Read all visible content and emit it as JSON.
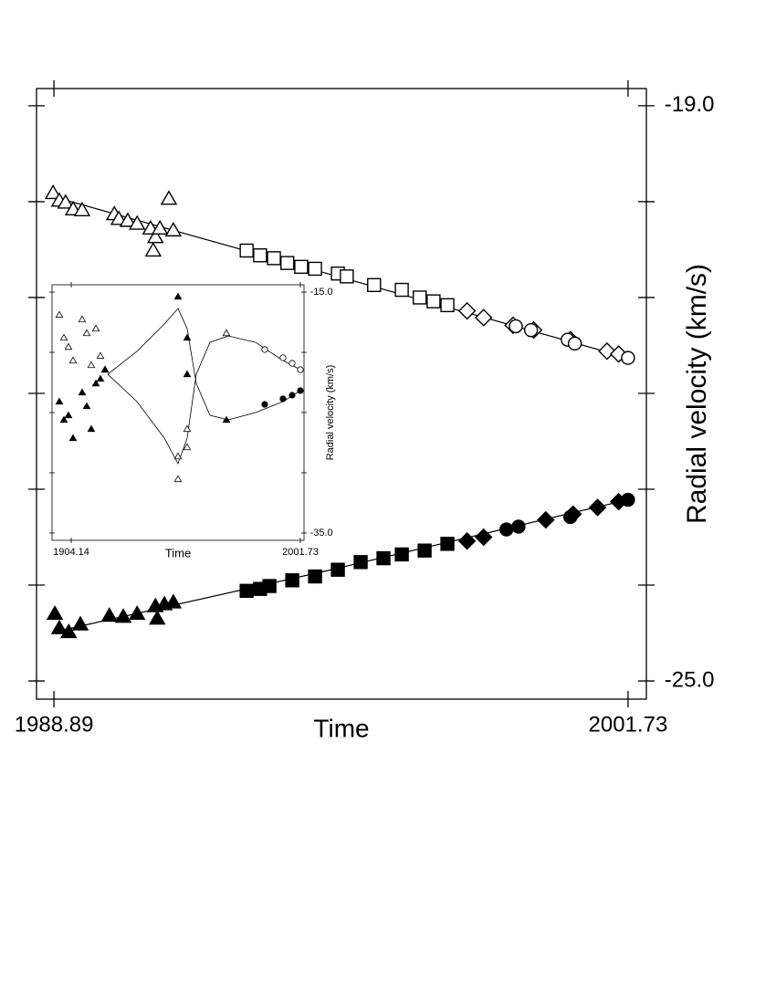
{
  "chart_data": [
    {
      "type": "scatter",
      "xlabel": "Time",
      "ylabel": "Radial velocity (km/s)",
      "yaxis_side": "right",
      "xlim": [
        1988.5,
        2002.14
      ],
      "ylim": [
        -25.19,
        -18.82
      ],
      "xticks": [
        1988.89,
        2001.73
      ],
      "yticks": [
        {
          "value": -19,
          "label": "-19.0"
        },
        {
          "value": -25,
          "label": "-25.0"
        }
      ],
      "yminor": [
        -20,
        -21,
        -22,
        -23,
        -24
      ],
      "color": "#000000",
      "series": [
        {
          "marker": "triangle",
          "filled": false,
          "x": [
            1988.87,
            1989.01,
            1989.15,
            1989.32,
            1989.52,
            1990.24,
            1990.34,
            1990.54,
            1990.75,
            1991.05,
            1991.16,
            1991.26,
            1991.46,
            1991.56,
            1991.11
          ],
          "values": [
            -19.91,
            -19.99,
            -20.01,
            -20.08,
            -20.09,
            -20.13,
            -20.18,
            -20.2,
            -20.23,
            -20.28,
            -20.37,
            -20.28,
            -19.97,
            -20.3,
            -20.51
          ]
        },
        {
          "marker": "square",
          "filled": false,
          "x": [
            1993.2,
            1993.5,
            1993.81,
            1994.11,
            1994.42,
            1994.73,
            1995.24,
            1995.44,
            1996.05,
            1996.67,
            1997.07,
            1997.38,
            1997.69
          ],
          "values": [
            -20.51,
            -20.56,
            -20.59,
            -20.64,
            -20.68,
            -20.7,
            -20.75,
            -20.78,
            -20.87,
            -20.92,
            -21.0,
            -21.04,
            -21.08
          ]
        },
        {
          "marker": "diamond",
          "filled": false,
          "x": [
            1998.13,
            1998.5,
            1999.16,
            1999.62,
            2000.44,
            2001.26,
            2001.52
          ],
          "values": [
            -21.14,
            -21.21,
            -21.29,
            -21.34,
            -21.44,
            -21.56,
            -21.59
          ]
        },
        {
          "marker": "circle",
          "filled": false,
          "x": [
            1999.22,
            1999.56,
            2000.38,
            2000.54,
            2001.73
          ],
          "values": [
            -21.3,
            -21.34,
            -21.44,
            -21.48,
            -21.63
          ]
        },
        {
          "marker": "triangle",
          "filled": true,
          "x": [
            1988.91,
            1989.01,
            1989.22,
            1989.48,
            1990.13,
            1990.44,
            1990.75,
            1991.16,
            1991.36,
            1991.56,
            1991.2
          ],
          "values": [
            -24.3,
            -24.45,
            -24.49,
            -24.41,
            -24.32,
            -24.33,
            -24.3,
            -24.22,
            -24.2,
            -24.18,
            -24.35
          ]
        },
        {
          "marker": "square",
          "filled": true,
          "x": [
            1993.2,
            1993.5,
            1993.71,
            1994.22,
            1994.73,
            1995.24,
            1995.75,
            1996.26,
            1996.67,
            1997.18,
            1997.69
          ],
          "values": [
            -24.06,
            -24.04,
            -24.01,
            -23.95,
            -23.91,
            -23.84,
            -23.76,
            -23.72,
            -23.68,
            -23.64,
            -23.57
          ]
        },
        {
          "marker": "diamond",
          "filled": true,
          "x": [
            1998.13,
            1998.5,
            1999.89,
            2000.5,
            2001.05,
            2001.52
          ],
          "values": [
            -23.54,
            -23.5,
            -23.32,
            -23.26,
            -23.19,
            -23.13
          ]
        },
        {
          "marker": "circle",
          "filled": true,
          "x": [
            1999.01,
            1999.28,
            2000.44,
            2001.73
          ],
          "values": [
            -23.42,
            -23.39,
            -23.29,
            -23.11
          ]
        }
      ],
      "fits": [
        {
          "x": [
            1988.89,
            1995,
            2001.73
          ],
          "values": [
            -19.95,
            -20.75,
            -21.63
          ]
        },
        {
          "x": [
            1988.89,
            1995,
            2001.73
          ],
          "values": [
            -24.49,
            -23.85,
            -23.11
          ]
        }
      ]
    },
    {
      "type": "scatter",
      "xlabel": "Time",
      "ylabel": "Radial velocity (km/s)",
      "yaxis_side": "right",
      "xlim": [
        1895.98,
        2003.29
      ],
      "ylim": [
        -35.61,
        -14.39
      ],
      "xticks": [
        1904.14,
        2001.73
      ],
      "yticks": [
        {
          "value": -15,
          "label": "-15.0"
        },
        {
          "value": -35,
          "label": "-35.0"
        }
      ],
      "yminor": [
        -20,
        -25,
        -30
      ],
      "color": "#000000",
      "series": [
        {
          "marker": "triangle",
          "filled": false,
          "x": [
            1899.09,
            1901.03,
            1902.97,
            1904.92,
            1908.81,
            1910.75,
            1912.69,
            1914.64,
            1916.58,
            1918.53,
            1949.63,
            1949.63,
            1953.52,
            1953.52,
            1970.24
          ],
          "values": [
            -16.89,
            -18.79,
            -19.55,
            -20.68,
            -17.27,
            -18.41,
            -21.06,
            -18.03,
            -20.3,
            -21.44,
            -28.64,
            -30.53,
            -26.36,
            -27.88,
            -18.41
          ]
        },
        {
          "marker": "triangle",
          "filled": true,
          "x": [
            1899.09,
            1901.03,
            1902.97,
            1904.92,
            1908.81,
            1910.75,
            1912.69,
            1914.64,
            1916.58,
            1918.53,
            1949.63,
            1953.52,
            1953.52,
            1970.24
          ],
          "values": [
            -24.09,
            -25.61,
            -25.23,
            -27.12,
            -23.33,
            -24.47,
            -26.36,
            -22.58,
            -22.2,
            -21.44,
            -15.38,
            -18.79,
            -21.82,
            -25.61
          ]
        },
        {
          "marker": "circle",
          "filled": false,
          "x": [
            1986.56,
            1994.34,
            1998.23,
            2001.73
          ],
          "values": [
            -19.77,
            -20.45,
            -20.91,
            -21.44
          ]
        },
        {
          "marker": "circle",
          "filled": true,
          "x": [
            1986.56,
            1994.34,
            1998.23,
            2001.73
          ],
          "values": [
            -24.32,
            -23.86,
            -23.56,
            -23.18
          ]
        }
      ],
      "fits": [
        {
          "x": [
            1919.69,
            1932.13,
            1943.8,
            1949.63,
            1953.52,
            1957.4,
            1963.24,
            1971.01,
            1982.68,
            1994.34,
            2001.73
          ],
          "values": [
            -21.82,
            -24.09,
            -27.12,
            -29.24,
            -27.12,
            -21.82,
            -19.17,
            -18.64,
            -19.17,
            -20.68,
            -21.44
          ]
        },
        {
          "x": [
            1919.69,
            1932.13,
            1943.8,
            1949.63,
            1953.52,
            1957.4,
            1963.24,
            1971.01,
            1982.68,
            1994.34,
            2001.73
          ],
          "values": [
            -21.82,
            -19.92,
            -17.65,
            -16.36,
            -18.03,
            -22.58,
            -25.23,
            -25.61,
            -25.0,
            -24.09,
            -23.18
          ]
        }
      ]
    }
  ]
}
